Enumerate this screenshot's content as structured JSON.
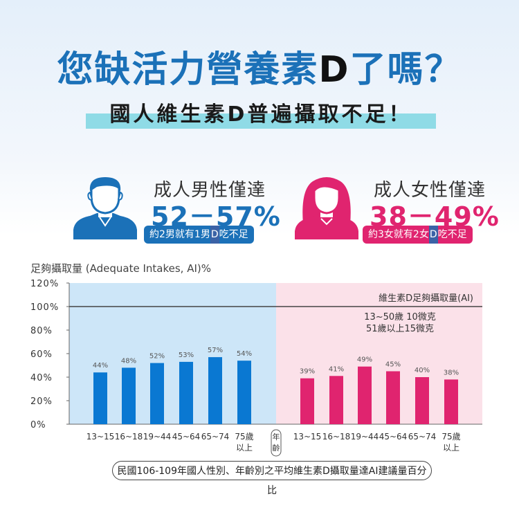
{
  "header": {
    "title_main": "您缺活力營養素",
    "title_d": "D",
    "title_end": "了嗎？",
    "subtitle": "國人維生素D普遍攝取不足！"
  },
  "male": {
    "label": "成人男性僅達",
    "value": "52－57%",
    "note_pre": "約2男就有1男",
    "note_d": "D",
    "note_post": "吃不足",
    "color": "#1b71b8"
  },
  "female": {
    "label": "成人女性僅達",
    "value": "38－49%",
    "note_pre": "約3女就有2女",
    "note_d": "D",
    "note_post": "吃不足",
    "color": "#e0246f"
  },
  "chart_data": {
    "type": "bar",
    "title": "足夠攝取量 (Adequate Intakes, AI)%",
    "ylim": [
      0,
      120
    ],
    "yticks": [
      "0%",
      "20%",
      "40%",
      "60%",
      "80%",
      "100%",
      "120%"
    ],
    "reference_line": {
      "value": 100,
      "label": "維生素D足夠攝取量(AI)",
      "note_lines": [
        "13~50歲 10微克",
        "51歲以上15微克"
      ]
    },
    "x_axis_label": [
      "年",
      "齡"
    ],
    "groups": [
      {
        "name": "male",
        "color": "#0a78d2",
        "background": "#cde6f8",
        "categories": [
          "13~15",
          "16~18",
          "19~44",
          "45~64",
          "65~74",
          "75歲以上"
        ],
        "values": [
          44,
          48,
          52,
          53,
          57,
          54
        ],
        "labels": [
          "44%",
          "48%",
          "52%",
          "53%",
          "57%",
          "54%"
        ]
      },
      {
        "name": "female",
        "color": "#e0246f",
        "background": "#fbe1e9",
        "categories": [
          "13~15",
          "16~18",
          "19~44",
          "45~64",
          "65~74",
          "75歲以上"
        ],
        "values": [
          39,
          41,
          49,
          45,
          40,
          38
        ],
        "labels": [
          "39%",
          "41%",
          "49%",
          "45%",
          "40%",
          "38%"
        ]
      }
    ]
  },
  "footer": "民國106-109年國人性別、年齡別之平均維生素D攝取量達AI建議量百分比"
}
